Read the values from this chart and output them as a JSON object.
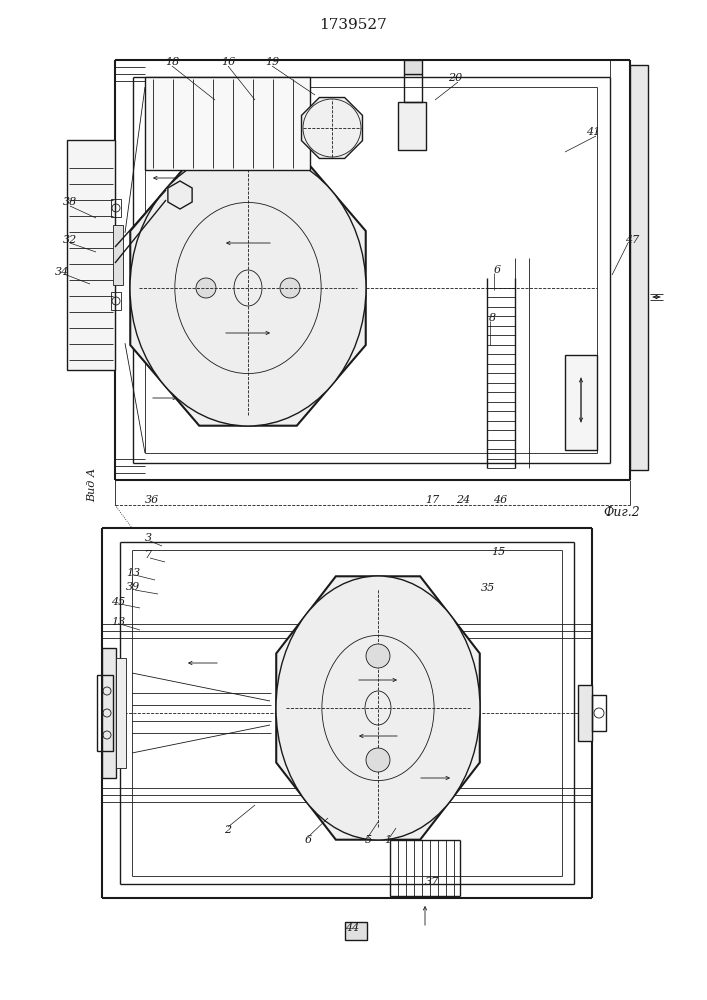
{
  "title": "1739527",
  "fig2_label": "Фиг.2",
  "view_a_label": "Вид А",
  "bg_color": "#ffffff",
  "line_color": "#1a1a1a",
  "title_fontsize": 11,
  "label_fontsize": 8,
  "fig_width": 7.07,
  "fig_height": 10.0,
  "dpi": 100
}
